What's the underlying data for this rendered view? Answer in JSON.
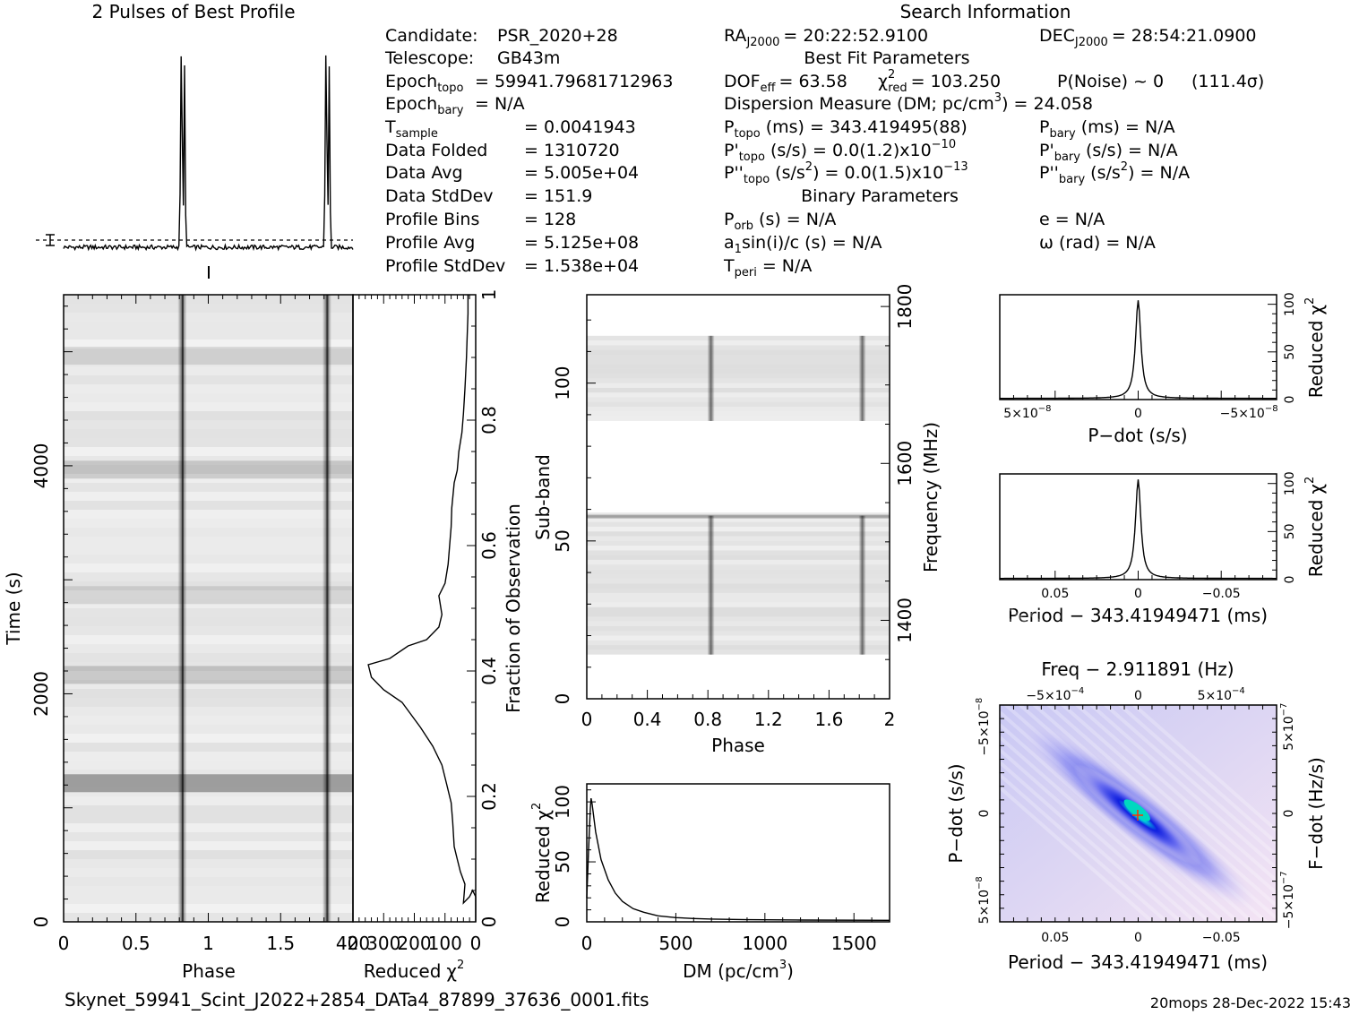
{
  "titles": {
    "profile_title": "2 Pulses of Best Profile",
    "search_title": "Search Information",
    "best_fit": "Best Fit Parameters",
    "binary": "Binary Parameters"
  },
  "info_col1": [
    {
      "k": "Candidate:",
      "sub": "",
      "v": "PSR_2020+28"
    },
    {
      "k": "Telescope:",
      "sub": "",
      "v": "GB43m"
    },
    {
      "k": "Epoch",
      "sub": "topo",
      "v": "= 59941.79681712963"
    },
    {
      "k": "Epoch",
      "sub": "bary",
      "v": "= N/A"
    },
    {
      "k": "T",
      "sub": "sample",
      "v": "=   0.0041943"
    },
    {
      "k": "Data Folded",
      "sub": "",
      "v": "=   1310720"
    },
    {
      "k": "Data Avg",
      "sub": "",
      "v": "=   5.005e+04"
    },
    {
      "k": "Data StdDev",
      "sub": "",
      "v": "=   151.9"
    },
    {
      "k": "Profile Bins",
      "sub": "",
      "v": "=   128"
    },
    {
      "k": "Profile Avg",
      "sub": "",
      "v": "=   5.125e+08"
    },
    {
      "k": "Profile StdDev",
      "sub": "",
      "v": "=   1.538e+04"
    }
  ],
  "info_col2": {
    "ra": {
      "k": "RA",
      "sub": "J2000",
      "v": "= 20:22:52.9100"
    },
    "dec": {
      "k": "DEC",
      "sub": "J2000",
      "v": "= 28:54:21.0900"
    },
    "dof": {
      "k": "DOF",
      "sub": "eff",
      "v": "= 63.58"
    },
    "chi": {
      "k": "χ",
      "sup": "2",
      "sub": "red",
      "v": "= 103.250"
    },
    "pnoise": "P(Noise) ~ 0",
    "sigma": "(111.4σ)",
    "dm": {
      "k": "Dispersion Measure (DM; pc/cm",
      "sup": "3",
      "v": ") = 24.058"
    },
    "ptopo": {
      "k": "P",
      "sub": "topo",
      "v": "(ms) =  343.419495(88)"
    },
    "pbary": {
      "k": "P",
      "sub": "bary",
      "v": "(ms) = N/A"
    },
    "pdtopo": {
      "k": "P'",
      "sub": "topo",
      "v": "(s/s) = 0.0(1.2)x10",
      "sup": "−10"
    },
    "pdbary": {
      "k": "P'",
      "sub": "bary",
      "v": "(s/s) = N/A"
    },
    "pddtopo": {
      "k": "P''",
      "sub": "topo",
      "v": "(s/s",
      "sup2": "2",
      "v2": ") = 0.0(1.5)x10",
      "sup": "−13"
    },
    "pddbary": {
      "k": "P''",
      "sub": "bary",
      "v": "(s/s",
      "sup2": "2",
      "v2": ") = N/A"
    },
    "porb": {
      "k": "P",
      "sub": "orb",
      "v": "(s) = N/A"
    },
    "e": "e = N/A",
    "a1": "a",
    "a1_sub": "1",
    "a1_v": "sin(i)/c (s) = N/A",
    "omega": "ω (rad) = N/A",
    "tperi": {
      "k": "T",
      "sub": "peri",
      "v": "= N/A"
    }
  },
  "axes": {
    "phase": "Phase",
    "time": "Time (s)",
    "reduced": "Reduced",
    "chi_sym": "χ",
    "chi_sup": "2",
    "fraction": "Fraction of Observation",
    "subband": "Sub-band",
    "frequency": "Frequency (MHz)",
    "dm": "DM (pc/cm",
    "dm_sup": "3",
    "dm_end": ")",
    "pdot": "P−dot (s/s)",
    "period": "Period − 343.41949471 (ms)",
    "freq": "Freq − 2.911891 (Hz)",
    "fdot": "F−dot (Hz/s)"
  },
  "ticks": {
    "phase_main": [
      "0",
      "0.5",
      "1",
      "1.5",
      "2"
    ],
    "time": [
      "0",
      "2000",
      "4000"
    ],
    "chi_bottom": [
      "400",
      "300",
      "200",
      "100",
      "0"
    ],
    "fraction": [
      "0",
      "0.2",
      "0.4",
      "0.6",
      "0.8",
      "1"
    ],
    "subband_phase": [
      "0",
      "0.4",
      "0.8",
      "1.2",
      "1.6",
      "2"
    ],
    "subband": [
      "0",
      "50",
      "100"
    ],
    "freq": [
      "1400",
      "1600",
      "1800"
    ],
    "dm": [
      "0",
      "500",
      "1000",
      "1500"
    ],
    "dm_chi": [
      "0",
      "50",
      "100"
    ],
    "pd_chi": [
      "0",
      "50",
      "100"
    ],
    "pd_x": [
      "5×10",
      "0",
      "−5×10"
    ],
    "pd_x_exp": "−8",
    "per_x": [
      "0.05",
      "0",
      "−0.05"
    ],
    "freq_top": [
      "−5×10",
      "0",
      "5×10"
    ],
    "freq_top_exp": "−4",
    "pdot_left": [
      "−5×10",
      "0",
      "5×10"
    ],
    "pdot_left_exp": "−8",
    "fdot_right": [
      "5×10",
      "0",
      "−5×10"
    ],
    "fdot_right_exp": "−7"
  },
  "footer": {
    "filename": "Skynet_59941_Scint_J2022+2854_DATa4_87899_37636_0001.fits",
    "stamp": "20mops 28-Dec-2022 15:43"
  },
  "chart_data": [
    {
      "type": "line",
      "name": "profile",
      "title": "2 Pulses of Best Profile",
      "x_range": [
        0,
        2
      ],
      "pulse_phases": [
        0.82,
        1.82
      ],
      "note_peaks": "double-peaked pulse near phase 0.82 and 1.82"
    },
    {
      "type": "heatmap",
      "name": "time-phase",
      "xlabel": "Phase",
      "ylabel": "Time (s)",
      "xlim": [
        0,
        2
      ],
      "ylim": [
        0,
        5500
      ],
      "pulse_phases": [
        0.82,
        1.82
      ],
      "dark_time_bands": [
        1200,
        2150,
        2850,
        3950,
        4950
      ]
    },
    {
      "type": "line",
      "name": "reduced-chi-vs-fraction",
      "xlabel": "Reduced χ2",
      "ylabel": "Fraction of Observation",
      "xlim": [
        400,
        0
      ],
      "ylim": [
        0,
        1
      ],
      "points": [
        [
          0,
          0
        ],
        [
          0.0,
          0.04
        ],
        [
          10,
          0.05
        ],
        [
          20,
          0.04
        ],
        [
          40,
          0.03
        ],
        [
          35,
          0.06
        ],
        [
          50,
          0.08
        ],
        [
          60,
          0.1
        ],
        [
          70,
          0.12
        ],
        [
          75,
          0.16
        ],
        [
          80,
          0.19
        ],
        [
          95,
          0.22
        ],
        [
          110,
          0.25
        ],
        [
          140,
          0.28
        ],
        [
          180,
          0.31
        ],
        [
          240,
          0.35
        ],
        [
          300,
          0.37
        ],
        [
          340,
          0.39
        ],
        [
          350,
          0.41
        ],
        [
          280,
          0.42
        ],
        [
          220,
          0.44
        ],
        [
          160,
          0.45
        ],
        [
          120,
          0.47
        ],
        [
          110,
          0.49
        ],
        [
          120,
          0.52
        ],
        [
          100,
          0.54
        ],
        [
          90,
          0.57
        ],
        [
          85,
          0.6
        ],
        [
          80,
          0.63
        ],
        [
          78,
          0.66
        ],
        [
          70,
          0.7
        ],
        [
          60,
          0.72
        ],
        [
          55,
          0.75
        ],
        [
          45,
          0.78
        ],
        [
          40,
          0.81
        ],
        [
          35,
          0.85
        ],
        [
          30,
          0.9
        ],
        [
          28,
          0.93
        ],
        [
          25,
          0.97
        ],
        [
          25,
          1.0
        ]
      ]
    },
    {
      "type": "heatmap",
      "name": "subband-phase",
      "xlabel": "Phase",
      "ylabel": "Sub-band",
      "y2label": "Frequency (MHz)",
      "xlim": [
        0,
        2
      ],
      "ylim": [
        0,
        128
      ],
      "data_bands": [
        [
          14,
          58
        ],
        [
          88,
          115
        ]
      ],
      "pulse_phases": [
        0.82,
        1.82
      ]
    },
    {
      "type": "line",
      "name": "dm-chi",
      "xlabel": "DM (pc/cm3)",
      "ylabel": "Reduced χ2",
      "xlim": [
        0,
        1700
      ],
      "ylim": [
        0,
        115
      ],
      "points": [
        [
          0,
          20
        ],
        [
          10,
          60
        ],
        [
          20,
          95
        ],
        [
          24,
          103
        ],
        [
          30,
          98
        ],
        [
          50,
          75
        ],
        [
          80,
          52
        ],
        [
          120,
          35
        ],
        [
          160,
          24
        ],
        [
          200,
          17
        ],
        [
          260,
          11
        ],
        [
          320,
          8
        ],
        [
          400,
          5
        ],
        [
          500,
          3.5
        ],
        [
          600,
          2.8
        ],
        [
          700,
          2.3
        ],
        [
          900,
          1.8
        ],
        [
          1200,
          1.5
        ],
        [
          1700,
          1.3
        ]
      ]
    },
    {
      "type": "line",
      "name": "pdot-chi",
      "xlabel": "P−dot (s/s)",
      "ylabel": "Reduced χ2",
      "ylim": [
        0,
        110
      ],
      "peak": 103
    },
    {
      "type": "line",
      "name": "period-chi",
      "xlabel": "Period − 343.41949471 (ms)",
      "ylabel": "Reduced χ2",
      "ylim": [
        0,
        110
      ],
      "peak": 103
    },
    {
      "type": "heatmap",
      "name": "period-pdot",
      "xlabel": "Period − 343.41949471 (ms)",
      "ylabel": "P−dot (s/s)",
      "x2label": "Freq − 2.911891 (Hz)",
      "y2label": "F−dot (Hz/s)"
    }
  ]
}
